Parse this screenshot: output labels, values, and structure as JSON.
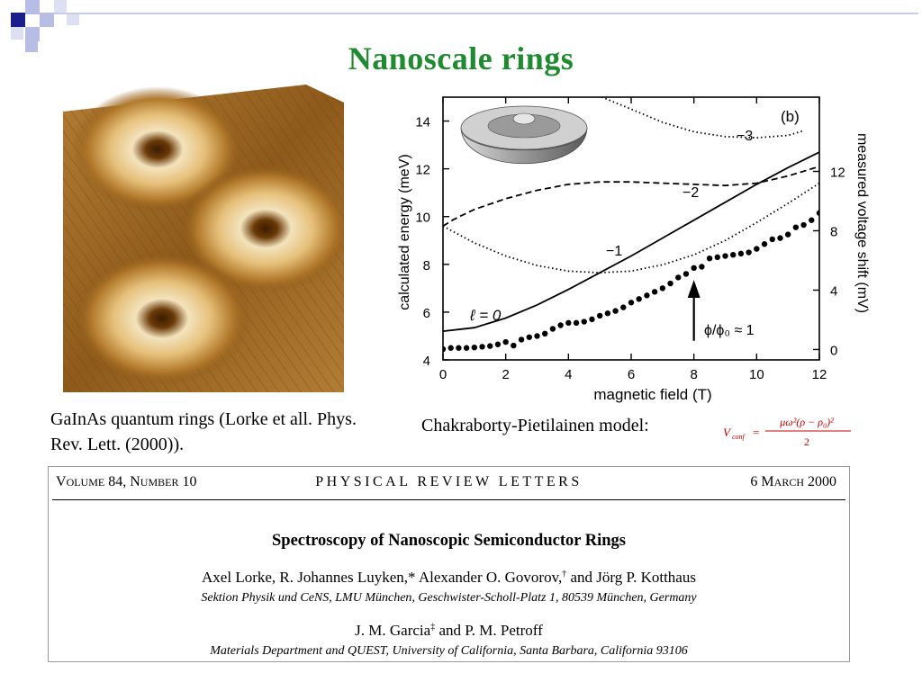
{
  "slide": {
    "title": "Nanoscale  rings",
    "caption_left": "GaInAs quantum rings (Lorke et all. Phys. Rev. Lett. (2000)).",
    "model_label": "Chakraborty-Pietilainen model:"
  },
  "formula": {
    "lhs": "V",
    "lhs_sub": "conf",
    "equals": "=",
    "numerator": "μω²(ρ − ρ₀)²",
    "denominator": "2"
  },
  "chart_data": {
    "type": "line",
    "panel_label": "(b)",
    "xlabel": "magnetic field (T)",
    "ylabel": "calculated energy  (meV)",
    "ylabel_right": "measured voltage shift  (mV)",
    "xlim": [
      0,
      12
    ],
    "ylim": [
      4,
      15
    ],
    "ylim_right": [
      -0.7,
      17
    ],
    "x_ticks": [
      "0",
      "2",
      "4",
      "6",
      "8",
      "10",
      "12"
    ],
    "y_ticks": [
      "4",
      "6",
      "8",
      "10",
      "12",
      "14"
    ],
    "y_ticks_right": [
      "0",
      "4",
      "8",
      "12"
    ],
    "annotations": {
      "l0": "ℓ = 0",
      "flux": "ϕ/ϕ₀ ≈ 1",
      "flux_x": 8,
      "m1": "−1",
      "m2": "−2",
      "m3": "−3"
    },
    "series": [
      {
        "style": "solid",
        "x": [
          0,
          1,
          2,
          3,
          4,
          5,
          6,
          7,
          8,
          9,
          10,
          11,
          12
        ],
        "y": [
          5.2,
          5.35,
          5.75,
          6.3,
          6.95,
          7.65,
          8.35,
          9.1,
          9.85,
          10.6,
          11.35,
          12.05,
          12.7
        ]
      },
      {
        "style": "dotted",
        "x": [
          0,
          1,
          2,
          3,
          4,
          5,
          6,
          7,
          8,
          9,
          10,
          11,
          12
        ],
        "y": [
          9.6,
          8.9,
          8.35,
          7.95,
          7.72,
          7.65,
          7.72,
          7.98,
          8.4,
          9.0,
          9.75,
          10.55,
          11.4
        ]
      },
      {
        "style": "dashed",
        "x": [
          0,
          0.3,
          0.6,
          1.0,
          2,
          3,
          4,
          5,
          6,
          7,
          8,
          9,
          10,
          11,
          12
        ],
        "y": [
          9.6,
          9.85,
          10.05,
          10.3,
          10.75,
          11.1,
          11.35,
          11.45,
          11.45,
          11.4,
          11.35,
          11.3,
          11.4,
          11.7,
          12.1
        ]
      },
      {
        "style": "dotted",
        "x": [
          4.7,
          6,
          7,
          8,
          9,
          10,
          11,
          11.5
        ],
        "y": [
          15.2,
          14.5,
          13.95,
          13.55,
          13.35,
          13.3,
          13.4,
          13.6
        ]
      },
      {
        "style": "dots",
        "x": [
          0,
          0.25,
          0.5,
          0.75,
          1,
          1.25,
          1.5,
          1.75,
          2,
          2.25,
          2.5,
          2.75,
          3,
          3.25,
          3.5,
          3.75,
          4,
          4.25,
          4.5,
          4.75,
          5,
          5.25,
          5.5,
          5.75,
          6,
          6.25,
          6.5,
          6.75,
          7,
          7.25,
          7.5,
          7.75,
          8,
          8.25,
          8.5,
          8.75,
          9,
          9.25,
          9.5,
          9.75,
          10,
          10.25,
          10.5,
          10.75,
          11,
          11.25,
          11.5,
          11.75,
          12
        ],
        "y": [
          4.45,
          4.5,
          4.5,
          4.5,
          4.52,
          4.55,
          4.58,
          4.65,
          4.75,
          4.6,
          4.85,
          4.95,
          5.0,
          5.1,
          5.3,
          5.45,
          5.55,
          5.55,
          5.6,
          5.7,
          5.85,
          5.95,
          6.05,
          6.2,
          6.4,
          6.55,
          6.7,
          6.85,
          7.0,
          7.2,
          7.45,
          7.6,
          7.85,
          7.9,
          8.25,
          8.3,
          8.35,
          8.4,
          8.45,
          8.5,
          8.65,
          8.85,
          9.05,
          9.1,
          9.25,
          9.55,
          9.65,
          9.85,
          10.15
        ]
      }
    ]
  },
  "paper": {
    "volume_prefix": "V",
    "volume_rest": "OLUME",
    "volume_num": " 84, ",
    "number_prefix": "N",
    "number_rest": "UMBER",
    "number_num": " 10",
    "journal": "PHYSICAL  REVIEW  LETTERS",
    "date_num": "6 ",
    "date_prefix": "M",
    "date_rest": "ARCH",
    "date_year": " 2000",
    "title": "Spectroscopy of Nanoscopic Semiconductor Rings",
    "authors1_a": "Axel Lorke, R. Johannes Luyken,*  Alexander O. Govorov,",
    "authors1_mark": "†",
    "authors1_b": "  and Jörg P. Kotthaus",
    "affiliation1": "Sektion Physik und CeNS, LMU München, Geschwister-Scholl-Platz 1, 80539 München, Germany",
    "authors2_a": "J. M. Garcia",
    "authors2_mark": "‡",
    "authors2_b": "  and P. M. Petroff",
    "affiliation2": "Materials Department and QUEST, University of California, Santa Barbara, California 93106"
  }
}
